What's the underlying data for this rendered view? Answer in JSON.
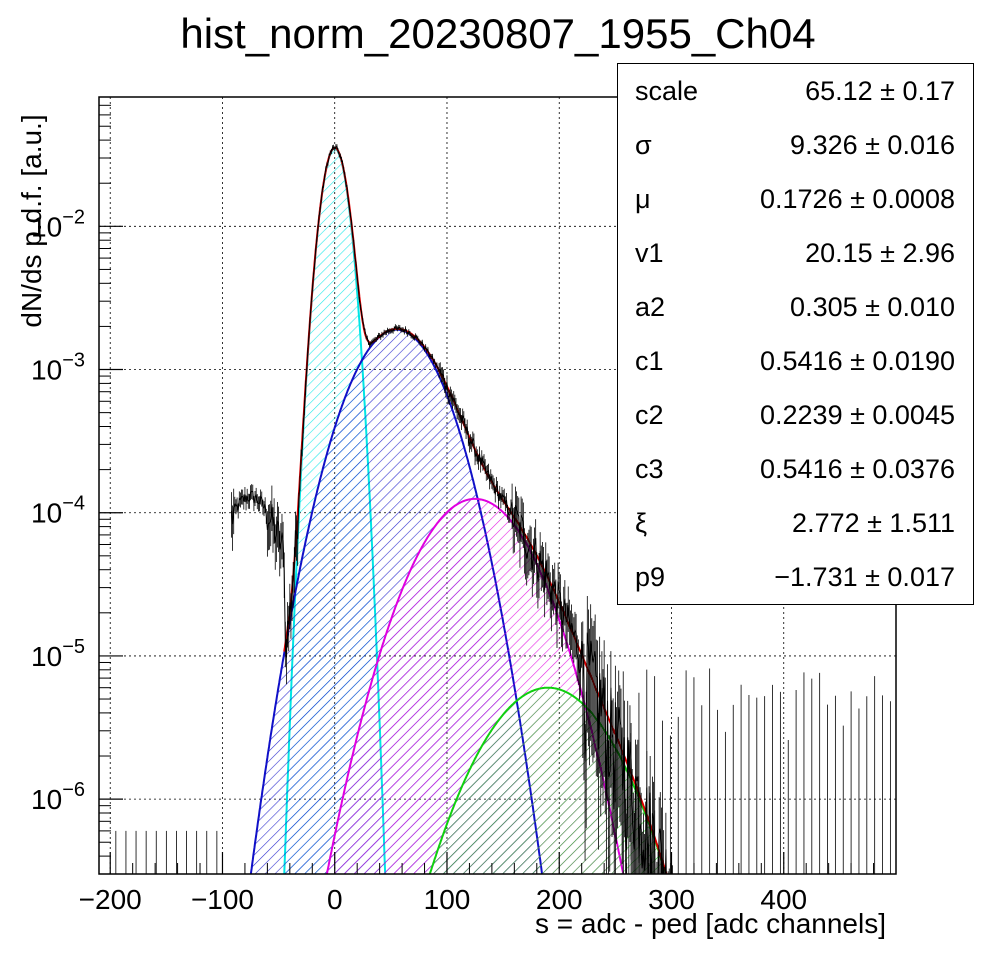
{
  "title": "hist_norm_20230807_1955_Ch04",
  "chart_data": {
    "type": "histogram",
    "title": "hist_norm_20230807_1955_Ch04",
    "xlabel": "s = adc - ped [adc channels]",
    "ylabel": "dN/ds p.d.f. [a.u.]",
    "xlim": [
      -210,
      500
    ],
    "ylim": [
      3e-07,
      0.08
    ],
    "yscale": "log",
    "grid": true,
    "x_ticks": [
      -200,
      -100,
      0,
      100,
      200,
      300,
      400
    ],
    "x_tick_labels": [
      "−200",
      "−100",
      "0",
      "100",
      "200",
      "300",
      "400"
    ],
    "y_ticks": [
      1e-06,
      1e-05,
      0.0001,
      0.001,
      0.01
    ],
    "y_tick_labels": [
      {
        "base": "10",
        "exp": "−6"
      },
      {
        "base": "10",
        "exp": "−5"
      },
      {
        "base": "10",
        "exp": "−4"
      },
      {
        "base": "10",
        "exp": "−3"
      },
      {
        "base": "10",
        "exp": "−2"
      }
    ],
    "series": [
      {
        "color": "#00e5e5",
        "style": "gaussian-hatched",
        "peak_x": 0,
        "peak_y": 0.035,
        "sigma": 9.3
      },
      {
        "color": "#1010c8",
        "style": "gaussian-hatched",
        "peak_x": 55,
        "peak_y": 0.0019,
        "sigma": 31
      },
      {
        "color": "#e000e0",
        "style": "gaussian-hatched",
        "peak_x": 125,
        "peak_y": 0.000125,
        "sigma": 38
      },
      {
        "color": "#10d010",
        "style": "gaussian-hatched",
        "peak_x": 190,
        "peak_y": 6e-06,
        "sigma": 43
      },
      {
        "color": "#dd0000",
        "style": "fit-total"
      },
      {
        "color": "#000000",
        "style": "data-histogram"
      }
    ],
    "stats_box": [
      {
        "name": "scale",
        "value": "65.12",
        "error": "0.17"
      },
      {
        "name": "σ",
        "value": "9.326",
        "error": "0.016"
      },
      {
        "name": "μ",
        "value": "0.1726",
        "error": "0.0008"
      },
      {
        "name": "v1",
        "value": "20.15",
        "error": "2.96"
      },
      {
        "name": "a2",
        "value": "0.305",
        "error": "0.010"
      },
      {
        "name": "c1",
        "value": "0.5416",
        "error": "0.0190"
      },
      {
        "name": "c2",
        "value": "0.2239",
        "error": "0.0045"
      },
      {
        "name": "c3",
        "value": "0.5416",
        "error": "0.0376"
      },
      {
        "name": "ξ",
        "value": "2.772",
        "error": "1.511"
      },
      {
        "name": "p9",
        "value": "−1.731",
        "error": "0.017"
      }
    ]
  }
}
